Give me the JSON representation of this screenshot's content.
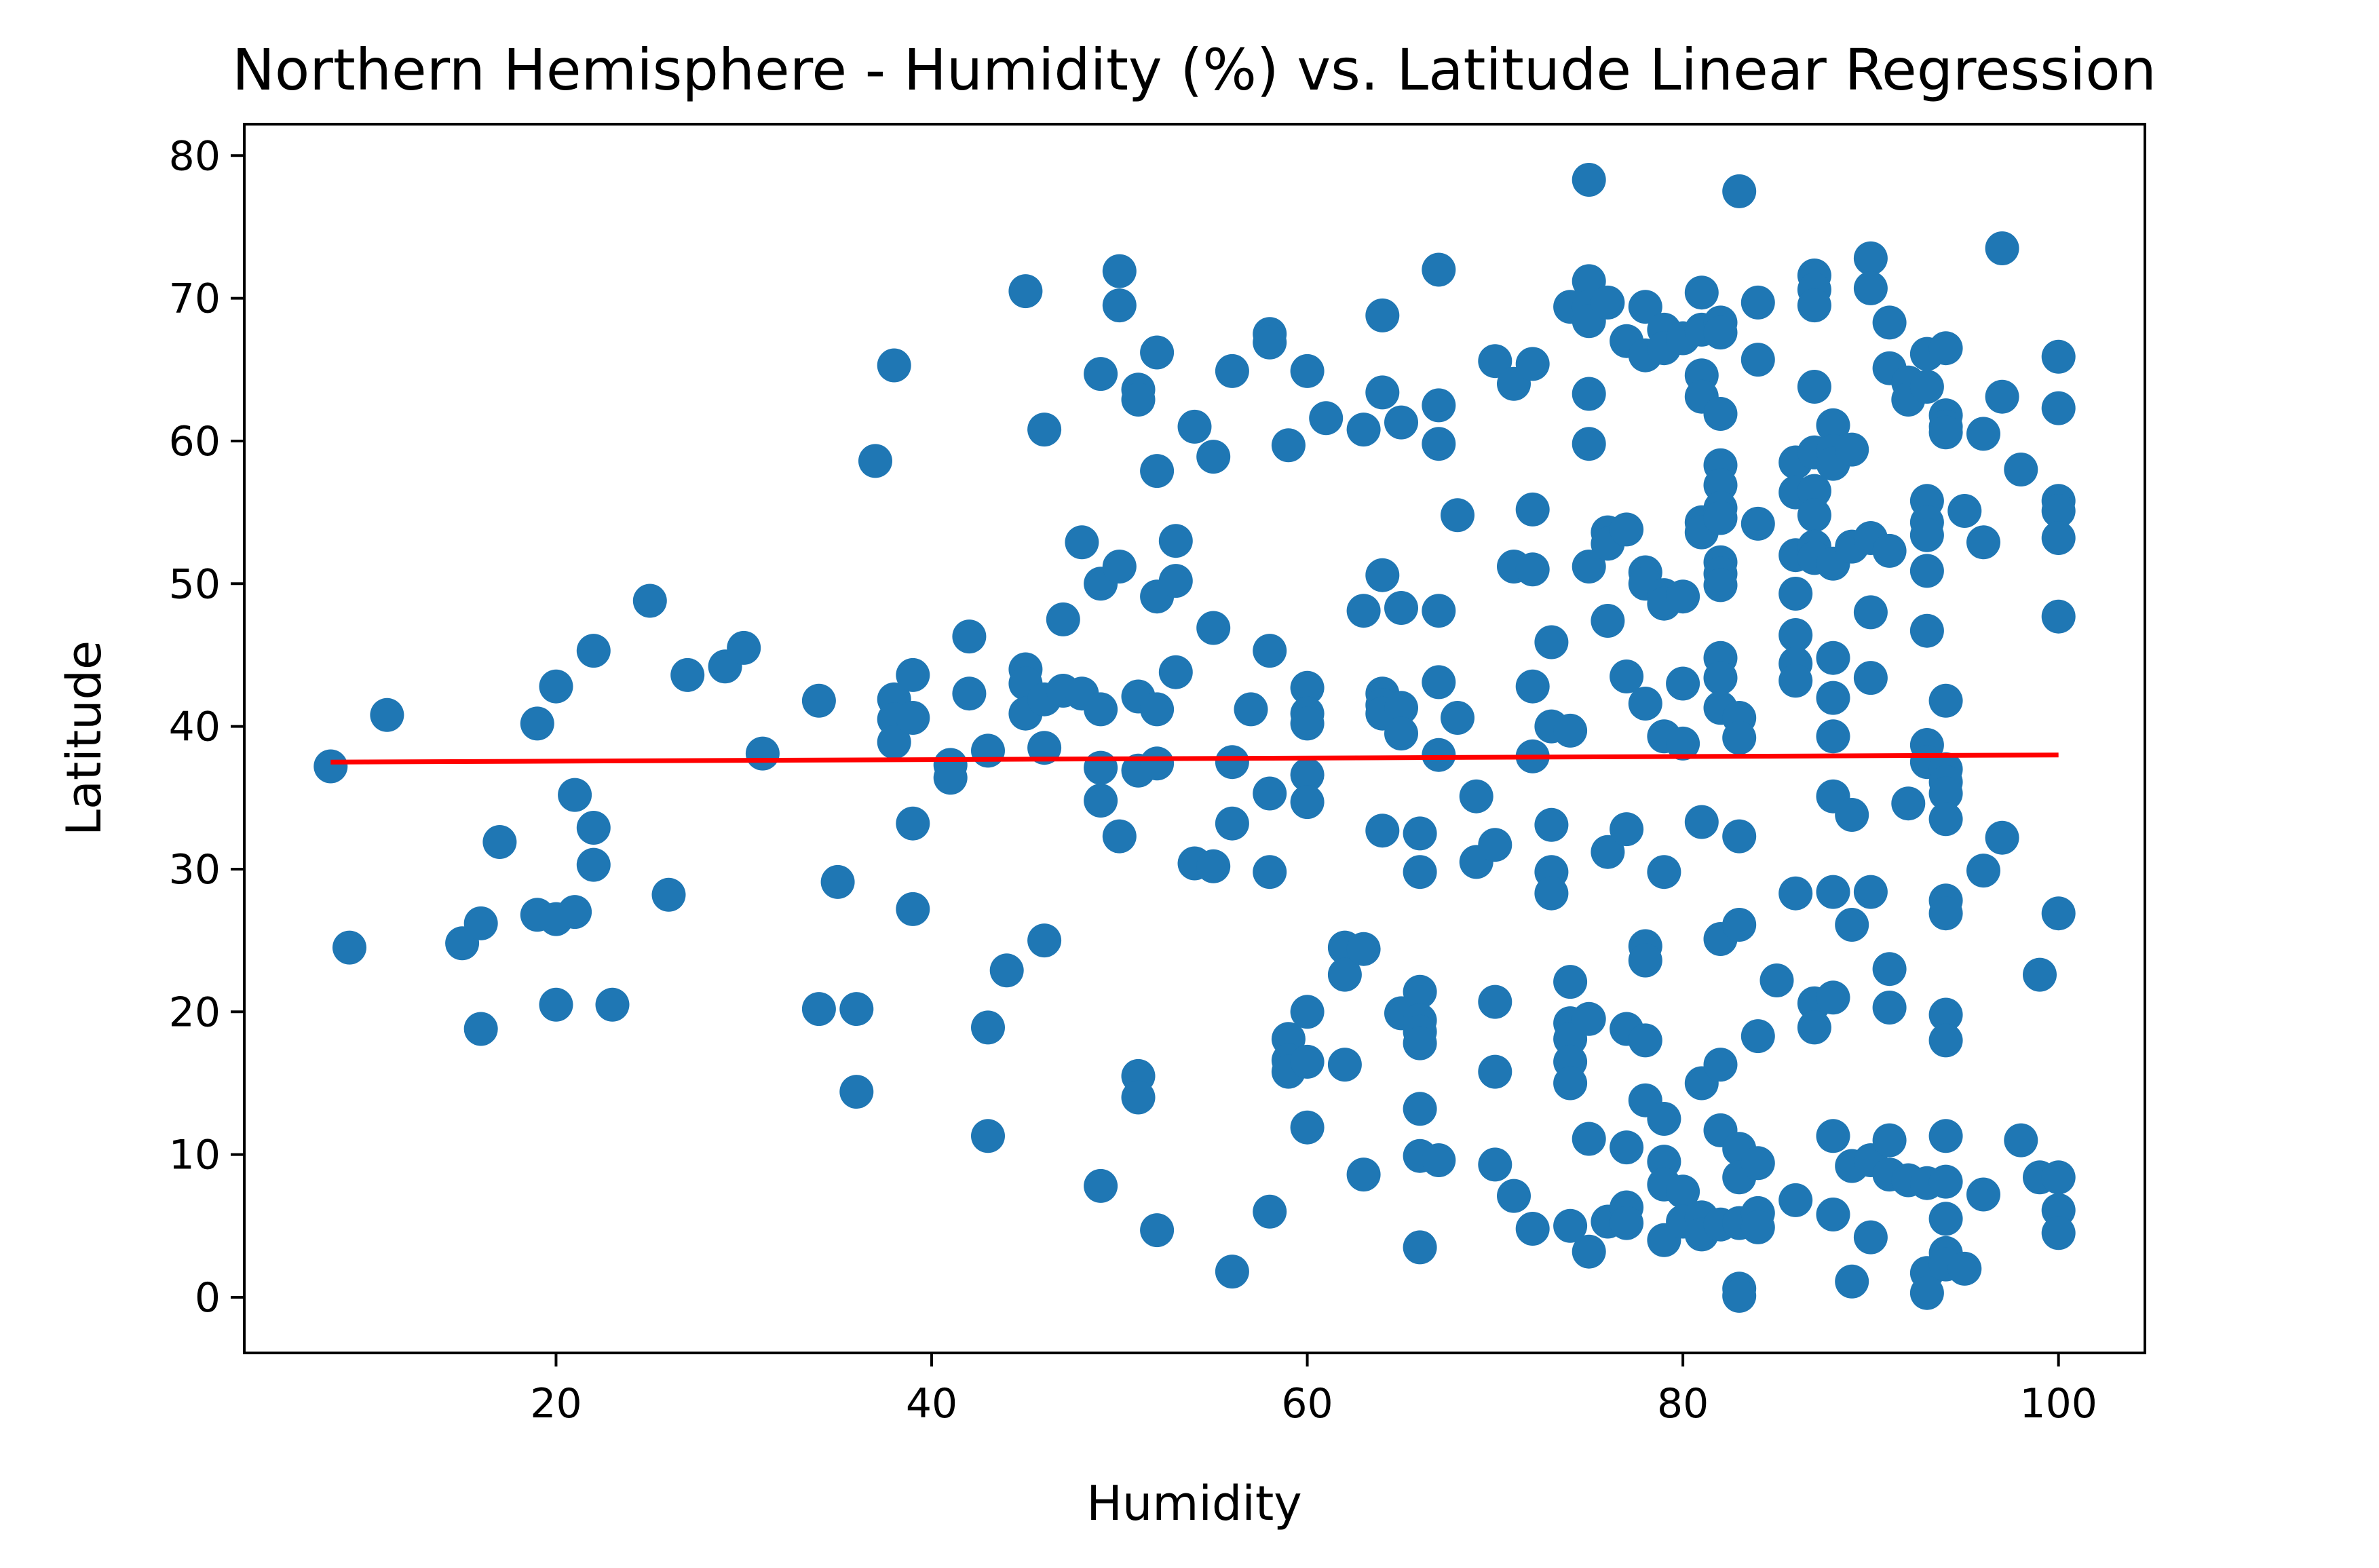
{
  "chart_data": {
    "type": "scatter",
    "title": "Northern Hemisphere - Humidity (%) vs. Latitude Linear Regression",
    "xlabel": "Humidity",
    "ylabel": "Latitude",
    "xlim": [
      3.4,
      104.6
    ],
    "ylim": [
      -3.9,
      82.2
    ],
    "xticks": [
      20,
      40,
      60,
      80,
      100
    ],
    "yticks": [
      0,
      10,
      20,
      30,
      40,
      50,
      60,
      70,
      80
    ],
    "grid": false,
    "point_color": "#1f77b4",
    "line_color": "#ff0000",
    "regression": {
      "x": [
        8,
        100
      ],
      "y": [
        37.5,
        38.0
      ]
    },
    "points": [
      [
        8,
        37.2
      ],
      [
        9,
        24.5
      ],
      [
        11,
        40.8
      ],
      [
        15,
        24.8
      ],
      [
        16,
        26.2
      ],
      [
        16,
        18.8
      ],
      [
        17,
        31.9
      ],
      [
        19,
        40.2
      ],
      [
        19,
        26.8
      ],
      [
        20,
        42.8
      ],
      [
        20,
        26.5
      ],
      [
        20,
        20.5
      ],
      [
        21,
        35.2
      ],
      [
        21,
        27.0
      ],
      [
        22,
        45.3
      ],
      [
        22,
        32.9
      ],
      [
        22,
        30.3
      ],
      [
        23,
        20.5
      ],
      [
        25,
        48.8
      ],
      [
        26,
        28.2
      ],
      [
        27,
        43.6
      ],
      [
        29,
        44.2
      ],
      [
        30,
        45.5
      ],
      [
        31,
        38.1
      ],
      [
        34,
        41.8
      ],
      [
        34,
        20.2
      ],
      [
        35,
        29.1
      ],
      [
        36,
        20.2
      ],
      [
        36,
        14.4
      ],
      [
        37,
        58.6
      ],
      [
        38,
        65.3
      ],
      [
        38,
        41.9
      ],
      [
        38,
        40.5
      ],
      [
        38,
        38.9
      ],
      [
        39,
        43.6
      ],
      [
        39,
        40.6
      ],
      [
        39,
        33.2
      ],
      [
        39,
        27.2
      ],
      [
        41,
        37.3
      ],
      [
        41,
        36.4
      ],
      [
        42,
        46.3
      ],
      [
        42,
        42.3
      ],
      [
        43,
        38.3
      ],
      [
        43,
        18.9
      ],
      [
        43,
        11.3
      ],
      [
        44,
        22.9
      ],
      [
        45,
        70.5
      ],
      [
        45,
        44.0
      ],
      [
        45,
        43.0
      ],
      [
        45,
        40.9
      ],
      [
        46,
        60.8
      ],
      [
        46,
        41.9
      ],
      [
        46,
        38.5
      ],
      [
        46,
        25.0
      ],
      [
        47,
        47.5
      ],
      [
        47,
        42.5
      ],
      [
        48,
        52.9
      ],
      [
        48,
        42.3
      ],
      [
        49,
        64.7
      ],
      [
        49,
        50.0
      ],
      [
        49,
        41.2
      ],
      [
        49,
        37.1
      ],
      [
        49,
        34.8
      ],
      [
        49,
        7.8
      ],
      [
        50,
        71.9
      ],
      [
        50,
        69.5
      ],
      [
        50,
        51.2
      ],
      [
        50,
        32.3
      ],
      [
        51,
        63.6
      ],
      [
        51,
        62.9
      ],
      [
        51,
        42.1
      ],
      [
        51,
        36.9
      ],
      [
        51,
        15.5
      ],
      [
        51,
        14.0
      ],
      [
        52,
        66.2
      ],
      [
        52,
        57.9
      ],
      [
        52,
        49.1
      ],
      [
        52,
        41.2
      ],
      [
        52,
        37.4
      ],
      [
        52,
        4.7
      ],
      [
        53,
        53.0
      ],
      [
        53,
        50.2
      ],
      [
        53,
        43.8
      ],
      [
        54,
        61.0
      ],
      [
        54,
        30.4
      ],
      [
        55,
        58.9
      ],
      [
        55,
        46.9
      ],
      [
        55,
        30.2
      ],
      [
        56,
        64.9
      ],
      [
        56,
        37.5
      ],
      [
        56,
        33.2
      ],
      [
        56,
        1.8
      ],
      [
        57,
        41.2
      ],
      [
        58,
        67.5
      ],
      [
        58,
        66.9
      ],
      [
        58,
        45.3
      ],
      [
        58,
        35.3
      ],
      [
        58,
        29.8
      ],
      [
        58,
        6.0
      ],
      [
        59,
        59.7
      ],
      [
        59,
        18.1
      ],
      [
        59,
        16.6
      ],
      [
        59,
        15.8
      ],
      [
        60,
        64.9
      ],
      [
        60,
        42.7
      ],
      [
        60,
        40.9
      ],
      [
        60,
        40.2
      ],
      [
        60,
        36.6
      ],
      [
        60,
        34.7
      ],
      [
        60,
        20.0
      ],
      [
        60,
        16.5
      ],
      [
        60,
        11.9
      ],
      [
        61,
        61.6
      ],
      [
        62,
        24.5
      ],
      [
        62,
        22.6
      ],
      [
        62,
        16.3
      ],
      [
        63,
        60.8
      ],
      [
        63,
        48.1
      ],
      [
        63,
        24.4
      ],
      [
        63,
        8.6
      ],
      [
        64,
        68.8
      ],
      [
        64,
        63.4
      ],
      [
        64,
        50.6
      ],
      [
        64,
        42.3
      ],
      [
        64,
        41.5
      ],
      [
        64,
        40.9
      ],
      [
        64,
        32.7
      ],
      [
        65,
        61.3
      ],
      [
        65,
        48.3
      ],
      [
        65,
        41.3
      ],
      [
        65,
        39.5
      ],
      [
        65,
        19.9
      ],
      [
        66,
        32.5
      ],
      [
        66,
        29.8
      ],
      [
        66,
        21.4
      ],
      [
        66,
        19.4
      ],
      [
        66,
        18.6
      ],
      [
        66,
        17.8
      ],
      [
        66,
        13.2
      ],
      [
        66,
        9.9
      ],
      [
        66,
        3.5
      ],
      [
        67,
        72.0
      ],
      [
        67,
        62.5
      ],
      [
        67,
        59.8
      ],
      [
        67,
        48.1
      ],
      [
        67,
        43.1
      ],
      [
        67,
        38.0
      ],
      [
        67,
        9.6
      ],
      [
        68,
        54.8
      ],
      [
        68,
        40.6
      ],
      [
        69,
        35.1
      ],
      [
        69,
        30.5
      ],
      [
        70,
        65.6
      ],
      [
        70,
        31.7
      ],
      [
        70,
        20.7
      ],
      [
        70,
        15.8
      ],
      [
        70,
        9.3
      ],
      [
        71,
        64.0
      ],
      [
        71,
        51.2
      ],
      [
        71,
        7.1
      ],
      [
        72,
        65.4
      ],
      [
        72,
        55.2
      ],
      [
        72,
        51.0
      ],
      [
        72,
        42.8
      ],
      [
        72,
        37.9
      ],
      [
        72,
        4.8
      ],
      [
        73,
        45.9
      ],
      [
        73,
        40.0
      ],
      [
        73,
        33.1
      ],
      [
        73,
        29.8
      ],
      [
        73,
        28.3
      ],
      [
        74,
        69.4
      ],
      [
        74,
        39.7
      ],
      [
        74,
        22.1
      ],
      [
        74,
        19.2
      ],
      [
        74,
        18.1
      ],
      [
        74,
        16.5
      ],
      [
        74,
        15.0
      ],
      [
        74,
        5.0
      ],
      [
        75,
        78.3
      ],
      [
        75,
        71.2
      ],
      [
        75,
        69.4
      ],
      [
        75,
        68.4
      ],
      [
        75,
        63.3
      ],
      [
        75,
        59.8
      ],
      [
        75,
        51.2
      ],
      [
        75,
        19.5
      ],
      [
        75,
        11.1
      ],
      [
        75,
        3.2
      ],
      [
        76,
        69.7
      ],
      [
        76,
        53.6
      ],
      [
        76,
        52.8
      ],
      [
        76,
        47.4
      ],
      [
        76,
        31.2
      ],
      [
        76,
        5.3
      ],
      [
        77,
        67.0
      ],
      [
        77,
        53.8
      ],
      [
        77,
        43.5
      ],
      [
        77,
        32.8
      ],
      [
        77,
        18.8
      ],
      [
        77,
        10.5
      ],
      [
        77,
        6.3
      ],
      [
        77,
        5.2
      ],
      [
        78,
        69.4
      ],
      [
        78,
        66.0
      ],
      [
        78,
        50.8
      ],
      [
        78,
        50.0
      ],
      [
        78,
        41.6
      ],
      [
        78,
        24.6
      ],
      [
        78,
        23.6
      ],
      [
        78,
        18.0
      ],
      [
        78,
        13.8
      ],
      [
        79,
        67.8
      ],
      [
        79,
        66.5
      ],
      [
        79,
        49.2
      ],
      [
        79,
        48.6
      ],
      [
        79,
        39.3
      ],
      [
        79,
        29.8
      ],
      [
        79,
        12.5
      ],
      [
        79,
        9.5
      ],
      [
        79,
        7.9
      ],
      [
        79,
        4.0
      ],
      [
        80,
        67.2
      ],
      [
        80,
        49.1
      ],
      [
        80,
        43.0
      ],
      [
        80,
        38.8
      ],
      [
        80,
        7.4
      ],
      [
        80,
        5.3
      ],
      [
        81,
        70.4
      ],
      [
        81,
        67.8
      ],
      [
        81,
        64.6
      ],
      [
        81,
        63.1
      ],
      [
        81,
        54.3
      ],
      [
        81,
        53.6
      ],
      [
        81,
        33.3
      ],
      [
        81,
        15.0
      ],
      [
        81,
        5.6
      ],
      [
        81,
        4.4
      ],
      [
        82,
        68.3
      ],
      [
        82,
        67.6
      ],
      [
        82,
        61.9
      ],
      [
        82,
        58.3
      ],
      [
        82,
        56.9
      ],
      [
        82,
        55.3
      ],
      [
        82,
        54.6
      ],
      [
        82,
        51.5
      ],
      [
        82,
        50.7
      ],
      [
        82,
        49.9
      ],
      [
        82,
        44.8
      ],
      [
        82,
        43.4
      ],
      [
        82,
        41.3
      ],
      [
        82,
        25.1
      ],
      [
        82,
        16.3
      ],
      [
        82,
        11.7
      ],
      [
        82,
        5.1
      ],
      [
        83,
        77.5
      ],
      [
        83,
        40.6
      ],
      [
        83,
        39.2
      ],
      [
        83,
        32.3
      ],
      [
        83,
        26.1
      ],
      [
        83,
        10.4
      ],
      [
        83,
        8.4
      ],
      [
        83,
        5.2
      ],
      [
        83,
        0.6
      ],
      [
        83,
        0.1
      ],
      [
        84,
        69.7
      ],
      [
        84,
        65.7
      ],
      [
        84,
        54.2
      ],
      [
        84,
        18.3
      ],
      [
        84,
        9.4
      ],
      [
        84,
        5.9
      ],
      [
        84,
        4.9
      ],
      [
        85,
        22.2
      ],
      [
        86,
        58.5
      ],
      [
        86,
        56.4
      ],
      [
        86,
        52.0
      ],
      [
        86,
        49.3
      ],
      [
        86,
        46.4
      ],
      [
        86,
        44.4
      ],
      [
        86,
        43.2
      ],
      [
        86,
        28.3
      ],
      [
        86,
        6.8
      ],
      [
        87,
        71.6
      ],
      [
        87,
        70.6
      ],
      [
        87,
        69.5
      ],
      [
        87,
        63.8
      ],
      [
        87,
        59.2
      ],
      [
        87,
        56.5
      ],
      [
        87,
        54.8
      ],
      [
        87,
        52.6
      ],
      [
        87,
        51.8
      ],
      [
        87,
        20.6
      ],
      [
        87,
        18.9
      ],
      [
        88,
        61.1
      ],
      [
        88,
        59.3
      ],
      [
        88,
        58.4
      ],
      [
        88,
        51.4
      ],
      [
        88,
        44.8
      ],
      [
        88,
        42.0
      ],
      [
        88,
        39.3
      ],
      [
        88,
        35.1
      ],
      [
        88,
        28.4
      ],
      [
        88,
        21.0
      ],
      [
        88,
        11.3
      ],
      [
        88,
        5.8
      ],
      [
        89,
        59.4
      ],
      [
        89,
        52.6
      ],
      [
        89,
        33.8
      ],
      [
        89,
        26.1
      ],
      [
        89,
        9.2
      ],
      [
        89,
        1.1
      ],
      [
        90,
        72.8
      ],
      [
        90,
        70.7
      ],
      [
        90,
        53.2
      ],
      [
        90,
        48.0
      ],
      [
        90,
        43.4
      ],
      [
        90,
        28.4
      ],
      [
        90,
        9.6
      ],
      [
        90,
        4.2
      ],
      [
        91,
        68.3
      ],
      [
        91,
        65.1
      ],
      [
        91,
        52.3
      ],
      [
        91,
        23.0
      ],
      [
        91,
        20.3
      ],
      [
        91,
        11.0
      ],
      [
        91,
        8.6
      ],
      [
        92,
        64.1
      ],
      [
        92,
        62.9
      ],
      [
        92,
        34.6
      ],
      [
        92,
        8.2
      ],
      [
        93,
        66.1
      ],
      [
        93,
        63.8
      ],
      [
        93,
        55.8
      ],
      [
        93,
        54.3
      ],
      [
        93,
        53.4
      ],
      [
        93,
        50.9
      ],
      [
        93,
        46.7
      ],
      [
        93,
        38.7
      ],
      [
        93,
        37.5
      ],
      [
        93,
        8.0
      ],
      [
        93,
        1.7
      ],
      [
        93,
        0.3
      ],
      [
        94,
        66.5
      ],
      [
        94,
        61.8
      ],
      [
        94,
        61.0
      ],
      [
        94,
        60.6
      ],
      [
        94,
        41.8
      ],
      [
        94,
        37.0
      ],
      [
        94,
        36.1
      ],
      [
        94,
        35.3
      ],
      [
        94,
        33.5
      ],
      [
        94,
        27.8
      ],
      [
        94,
        26.9
      ],
      [
        94,
        19.8
      ],
      [
        94,
        18.0
      ],
      [
        94,
        11.3
      ],
      [
        94,
        8.1
      ],
      [
        94,
        5.5
      ],
      [
        94,
        3.1
      ],
      [
        94,
        2.3
      ],
      [
        95,
        55.1
      ],
      [
        95,
        2.0
      ],
      [
        96,
        60.5
      ],
      [
        96,
        52.9
      ],
      [
        96,
        29.9
      ],
      [
        96,
        7.2
      ],
      [
        97,
        73.5
      ],
      [
        97,
        63.1
      ],
      [
        97,
        32.2
      ],
      [
        98,
        58.0
      ],
      [
        98,
        11.0
      ],
      [
        99,
        22.6
      ],
      [
        99,
        8.4
      ],
      [
        100,
        65.9
      ],
      [
        100,
        62.3
      ],
      [
        100,
        55.8
      ],
      [
        100,
        55.1
      ],
      [
        100,
        53.2
      ],
      [
        100,
        47.7
      ],
      [
        100,
        26.9
      ],
      [
        100,
        8.4
      ],
      [
        100,
        6.1
      ],
      [
        100,
        4.5
      ]
    ]
  }
}
